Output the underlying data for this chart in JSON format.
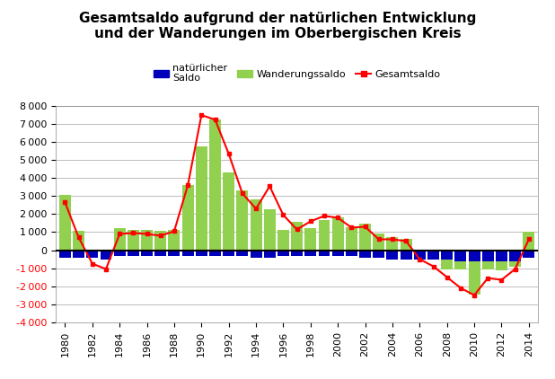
{
  "years": [
    1980,
    1981,
    1982,
    1983,
    1984,
    1985,
    1986,
    1987,
    1988,
    1989,
    1990,
    1991,
    1992,
    1993,
    1994,
    1995,
    1996,
    1997,
    1998,
    1999,
    2000,
    2001,
    2002,
    2003,
    2004,
    2005,
    2006,
    2007,
    2008,
    2009,
    2010,
    2011,
    2012,
    2013,
    2014
  ],
  "natuerlicher_saldo": [
    -400,
    -400,
    -400,
    -500,
    -300,
    -300,
    -300,
    -300,
    -300,
    -300,
    -300,
    -300,
    -300,
    -300,
    -400,
    -400,
    -300,
    -300,
    -300,
    -300,
    -300,
    -300,
    -400,
    -400,
    -500,
    -500,
    -500,
    -500,
    -500,
    -600,
    -600,
    -600,
    -600,
    -600,
    -400
  ],
  "wanderungssaldo": [
    3050,
    1050,
    -300,
    -450,
    1200,
    1100,
    1100,
    1050,
    1100,
    3600,
    5750,
    7250,
    4300,
    3300,
    2800,
    2250,
    1100,
    1550,
    1200,
    1650,
    1800,
    1250,
    1450,
    900,
    700,
    600,
    -100,
    -400,
    -1050,
    -1050,
    -2450,
    -1050,
    -1100,
    -900,
    1000
  ],
  "gesamtsaldo": [
    2650,
    700,
    -750,
    -1050,
    900,
    950,
    900,
    800,
    1050,
    3600,
    7500,
    7250,
    5350,
    3150,
    2300,
    3550,
    1950,
    1150,
    1600,
    1900,
    1800,
    1250,
    1300,
    600,
    600,
    500,
    -500,
    -900,
    -1500,
    -2100,
    -2500,
    -1550,
    -1650,
    -1050,
    600
  ],
  "title_line1": "Gesamtsaldo aufgrund der natürlichen Entwicklung",
  "title_line2": "und der Wanderungen im Oberbergischen Kreis",
  "legend_nat": "natürlicher\nSaldo",
  "legend_wand": "Wanderungssaldo",
  "legend_ges": "Gesamtsaldo",
  "ylim": [
    -4000,
    8000
  ],
  "yticks": [
    -4000,
    -3000,
    -2000,
    -1000,
    0,
    1000,
    2000,
    3000,
    4000,
    5000,
    6000,
    7000,
    8000
  ],
  "bar_color_nat": "#0000BB",
  "bar_color_wand": "#92D050",
  "line_color_ges": "#FF0000",
  "bg_color": "#FFFFFF",
  "grid_color": "#BBBBBB",
  "title_fontsize": 11,
  "axis_fontsize": 8,
  "legend_fontsize": 8
}
